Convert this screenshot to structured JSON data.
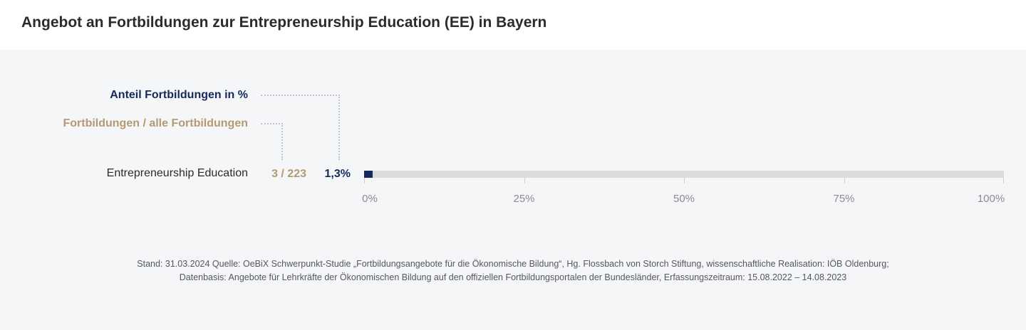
{
  "title": "Angebot an Fortbildungen zur Entrepreneurship Education (EE) in Bayern",
  "legend": {
    "share_label": "Anteil Fortbildungen  in %",
    "count_label": "Fortbildungen / alle Fortbildungen"
  },
  "colors": {
    "share": "#15295c",
    "count": "#b49a72",
    "track": "#dcdcde"
  },
  "chart_data": {
    "type": "bar",
    "orientation": "horizontal",
    "categories": [
      "Entrepreneurship Education"
    ],
    "values": [
      1.3
    ],
    "value_labels": [
      "1,3%"
    ],
    "count_labels": [
      "3 / 223"
    ],
    "xlim": [
      0,
      100
    ],
    "xticks": [
      0,
      25,
      50,
      75,
      100
    ],
    "xtick_labels": [
      "0%",
      "25%",
      "50%",
      "75%",
      "100%"
    ],
    "grid": false
  },
  "source": {
    "line1": "Stand: 31.03.2024 Quelle: OeBiX Schwerpunkt-Studie „Fortbildungsangebote für die Ökonomische Bildung“, Hg. Flossbach von Storch Stiftung, wissenschaftliche Realisation: IÖB Oldenburg;",
    "line2": "Datenbasis: Angebote für Lehrkräfte der Ökonomischen Bildung auf den offiziellen Fortbildungsportalen der Bundesländer, Erfassungszeitraum: 15.08.2022 – 14.08.2023"
  }
}
